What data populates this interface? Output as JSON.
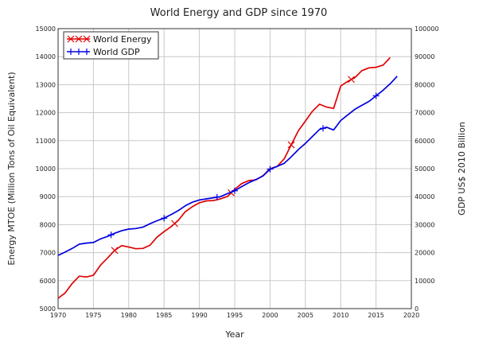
{
  "chart_data": {
    "type": "line",
    "title": "World Energy and GDP since 1970",
    "xlabel": "Year",
    "ylabel_left": "Energy MTOE (Million Tons of Oil Equivalent)",
    "ylabel_right": "GDP US$ 2010 Billion",
    "xlim": [
      1970,
      2020
    ],
    "ylim_left": [
      5000,
      15000
    ],
    "ylim_right": [
      0,
      100000
    ],
    "x_ticks": [
      1970,
      1975,
      1980,
      1985,
      1990,
      1995,
      2000,
      2005,
      2010,
      2015,
      2020
    ],
    "y_ticks_left": [
      5000,
      6000,
      7000,
      8000,
      9000,
      10000,
      11000,
      12000,
      13000,
      14000,
      15000
    ],
    "y_ticks_right": [
      0,
      10000,
      20000,
      30000,
      40000,
      50000,
      60000,
      70000,
      80000,
      90000,
      100000
    ],
    "grid": true,
    "legend_position": "top-left",
    "series": [
      {
        "name": "World Energy",
        "axis": "left",
        "color": "#e00000",
        "marker": "x",
        "x": [
          1970,
          1971,
          1972,
          1973,
          1974,
          1975,
          1976,
          1977,
          1978,
          1979,
          1980,
          1981,
          1982,
          1983,
          1984,
          1985,
          1986,
          1987,
          1988,
          1989,
          1990,
          1991,
          1992,
          1993,
          1994,
          1995,
          1996,
          1997,
          1998,
          1999,
          2000,
          2001,
          2002,
          2003,
          2004,
          2005,
          2006,
          2007,
          2008,
          2009,
          2010,
          2011,
          2012,
          2013,
          2014,
          2015,
          2016,
          2017
        ],
        "values": [
          5370,
          5560,
          5900,
          6160,
          6130,
          6190,
          6550,
          6810,
          7080,
          7250,
          7200,
          7140,
          7150,
          7260,
          7550,
          7750,
          7930,
          8150,
          8460,
          8640,
          8780,
          8850,
          8860,
          8920,
          9010,
          9260,
          9470,
          9570,
          9600,
          9750,
          10000,
          10080,
          10350,
          10850,
          11350,
          11700,
          12050,
          12300,
          12200,
          12150,
          12950,
          13120,
          13250,
          13500,
          13600,
          13620,
          13700,
          13970
        ],
        "marker_years": [
          1978,
          1986.5,
          1994.5,
          2003,
          2011.5
        ]
      },
      {
        "name": "World GDP",
        "axis": "right",
        "color": "#0000e0",
        "marker": "+",
        "x": [
          1970,
          1971,
          1972,
          1973,
          1974,
          1975,
          1976,
          1977,
          1978,
          1979,
          1980,
          1981,
          1982,
          1983,
          1984,
          1985,
          1986,
          1987,
          1988,
          1989,
          1990,
          1991,
          1992,
          1993,
          1994,
          1995,
          1996,
          1997,
          1998,
          1999,
          2000,
          2001,
          2002,
          2003,
          2004,
          2005,
          2006,
          2007,
          2008,
          2009,
          2010,
          2011,
          2012,
          2013,
          2014,
          2015,
          2016,
          2017,
          2018
        ],
        "values": [
          19000,
          20200,
          21500,
          23000,
          23400,
          23600,
          24900,
          25800,
          26900,
          27800,
          28400,
          28600,
          29100,
          30300,
          31400,
          32300,
          33600,
          35000,
          36700,
          38000,
          38800,
          39200,
          39600,
          40000,
          41100,
          42100,
          43600,
          45000,
          46100,
          47400,
          49800,
          50800,
          51900,
          54200,
          56800,
          59000,
          61500,
          64000,
          64800,
          63800,
          67200,
          69200,
          71200,
          72600,
          74000,
          76000,
          78000,
          80300,
          83000
        ],
        "marker_years": [
          1977.5,
          1985,
          1992.5,
          1995,
          2000,
          2007.5,
          2015
        ]
      }
    ]
  }
}
